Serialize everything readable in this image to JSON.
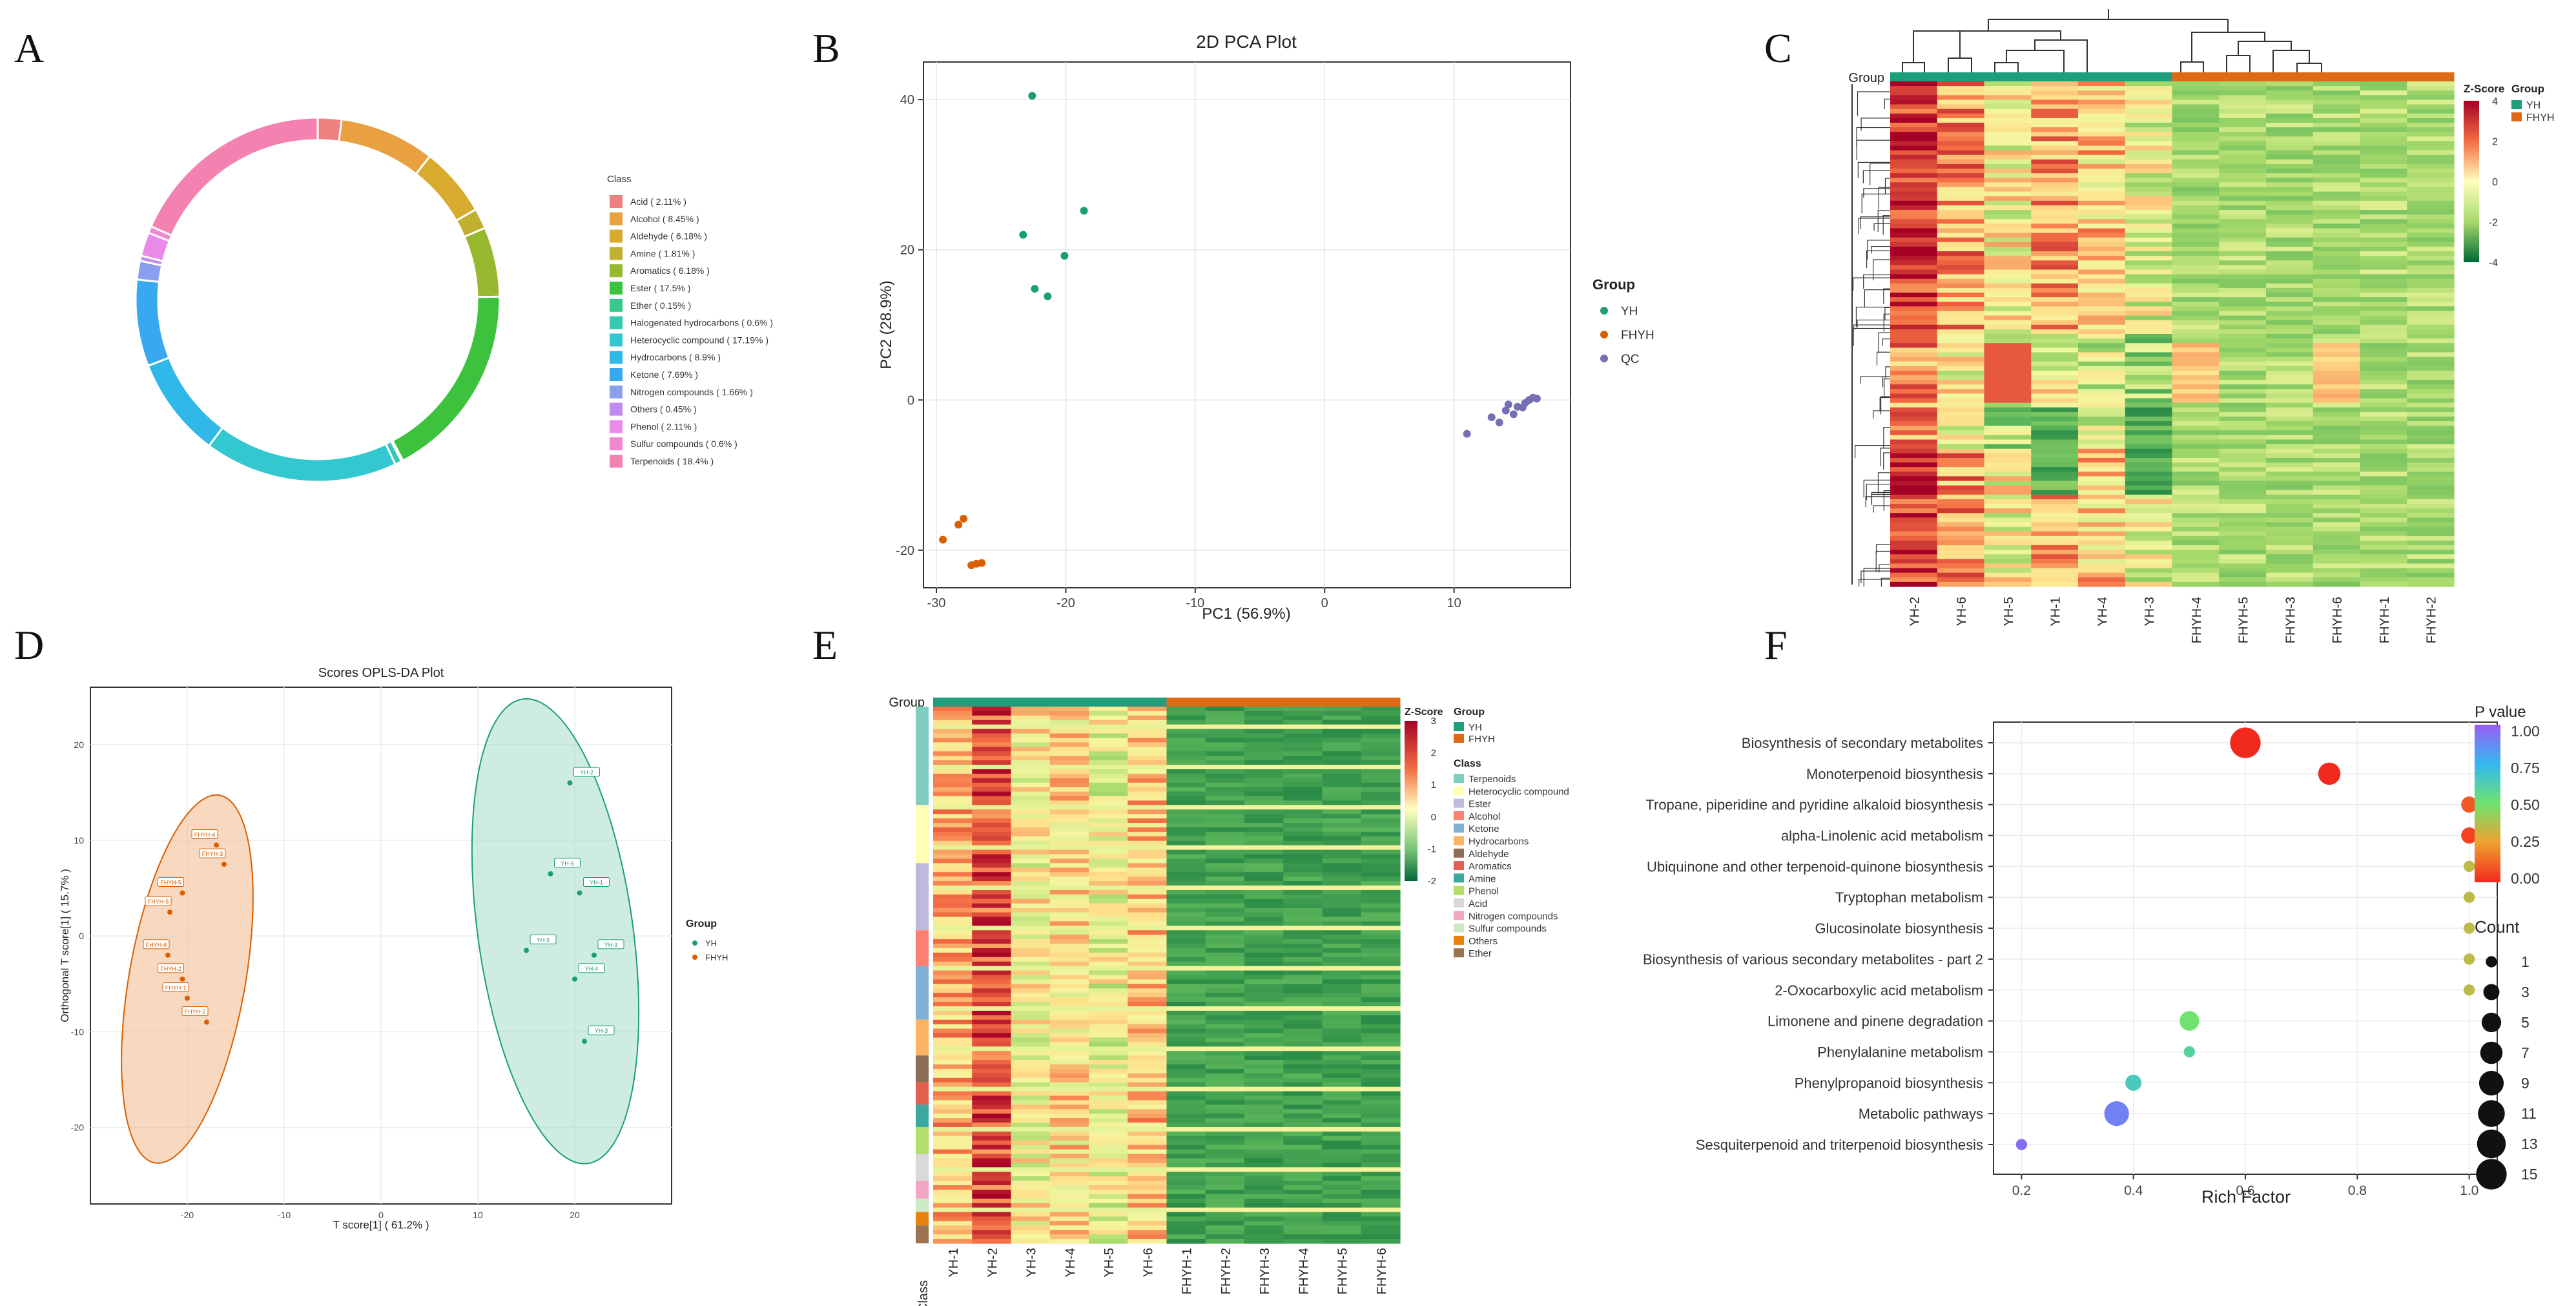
{
  "panels": {
    "A": "A",
    "B": "B",
    "C": "C",
    "D": "D",
    "E": "E",
    "F": "F"
  },
  "chart_data": [
    {
      "id": "A",
      "type": "pie",
      "title": "",
      "legend_title": "Class",
      "legend_position": "right",
      "labels": [
        "Acid ( 2.11% )",
        "Alcohol ( 8.45% )",
        "Aldehyde ( 6.18% )",
        "Amine ( 1.81% )",
        "Aromatics ( 6.18% )",
        "Ester ( 17.5% )",
        "Ether ( 0.15% )",
        "Halogenated hydrocarbons ( 0.6% )",
        "Heterocyclic compound ( 17.19% )",
        "Hydrocarbons ( 8.9% )",
        "Ketone ( 7.69% )",
        "Nitrogen compounds ( 1.66% )",
        "Others ( 0.45% )",
        "Phenol ( 2.11% )",
        "Sulfur compounds ( 0.6% )",
        "Terpenoids ( 18.4% )"
      ],
      "values": [
        2.11,
        8.45,
        6.18,
        1.81,
        6.18,
        17.5,
        0.15,
        0.6,
        17.19,
        8.9,
        7.69,
        1.66,
        0.45,
        2.11,
        0.6,
        18.4
      ],
      "colors": [
        "#F08080",
        "#E8A040",
        "#D8AA30",
        "#C0B030",
        "#98B830",
        "#3CC23C",
        "#38C98A",
        "#36C9B0",
        "#33C7D0",
        "#30B8E8",
        "#38A8F0",
        "#8AA0EE",
        "#C08AEE",
        "#E88AE8",
        "#F088D0",
        "#F482B0"
      ]
    },
    {
      "id": "B",
      "type": "scatter",
      "title": "2D PCA Plot",
      "xlabel": "PC1 (56.9%)",
      "ylabel": "PC2 (28.9%)",
      "xlim": [
        -31,
        19
      ],
      "ylim": [
        -25,
        45
      ],
      "xticks": [
        "-30",
        "-20",
        "-10",
        "0",
        "10"
      ],
      "yticks": [
        "-20",
        "0",
        "20",
        "40"
      ],
      "xtick_values": [
        -30,
        -20,
        -10,
        0,
        10
      ],
      "ytick_values": [
        -20,
        0,
        20,
        40
      ],
      "grid": true,
      "legend_title": "Group",
      "legend_position": "right",
      "series": [
        {
          "name": "YH",
          "color": "#1B9E77",
          "points": [
            [
              -22.6,
              40.5
            ],
            [
              -23.3,
              22
            ],
            [
              -20.1,
              19.2
            ],
            [
              -18.6,
              25.2
            ],
            [
              -22.4,
              14.8
            ],
            [
              -21.4,
              13.8
            ]
          ]
        },
        {
          "name": "FHYH",
          "color": "#D95F02",
          "points": [
            [
              -29.5,
              -18.6
            ],
            [
              -28.3,
              -16.6
            ],
            [
              -27.9,
              -15.8
            ],
            [
              -27.3,
              -22
            ],
            [
              -26.9,
              -21.8
            ],
            [
              -26.5,
              -21.7
            ]
          ]
        },
        {
          "name": "QC",
          "color": "#7570B3",
          "points": [
            [
              11,
              -4.5
            ],
            [
              12.9,
              -2.3
            ],
            [
              13.5,
              -3
            ],
            [
              14,
              -1.4
            ],
            [
              14.2,
              -0.6
            ],
            [
              14.6,
              -1.9
            ],
            [
              14.9,
              -0.9
            ],
            [
              15.3,
              -1
            ],
            [
              15.5,
              -0.4
            ],
            [
              15.8,
              0
            ],
            [
              16.1,
              0.3
            ],
            [
              16.4,
              0.2
            ]
          ]
        }
      ]
    },
    {
      "id": "C",
      "type": "heatmap",
      "columns": [
        "YH-2",
        "YH-6",
        "YH-5",
        "YH-1",
        "YH-4",
        "YH-3",
        "FHYH-4",
        "FHYH-5",
        "FHYH-3",
        "FHYH-6",
        "FHYH-1",
        "FHYH-2"
      ],
      "column_groups": [
        "YH",
        "YH",
        "YH",
        "YH",
        "YH",
        "YH",
        "FHYH",
        "FHYH",
        "FHYH",
        "FHYH",
        "FHYH",
        "FHYH"
      ],
      "annotation_label": "Group",
      "scale_title": "Z-Score",
      "scale_ticks": [
        "4",
        "2",
        "0",
        "-2",
        "-4"
      ],
      "scale_range": [
        -4,
        4
      ],
      "legend_title": "Group",
      "legend_items": [
        "YH",
        "FHYH"
      ],
      "group_colors": {
        "YH": "#1E9E7A",
        "FHYH": "#DE6A16"
      }
    },
    {
      "id": "D",
      "type": "scatter",
      "title": "Scores OPLS-DA Plot",
      "xlabel": "T score[1] ( 61.2% )",
      "ylabel": "Orthogonal T score[1] ( 15.7% )",
      "xlim": [
        -30,
        30
      ],
      "ylim": [
        -28,
        26
      ],
      "xticks": [
        "-20",
        "-10",
        "0",
        "10",
        "20"
      ],
      "yticks": [
        "-20",
        "-10",
        "0",
        "10",
        "20"
      ],
      "xtick_values": [
        -20,
        -10,
        0,
        10,
        20
      ],
      "ytick_values": [
        -20,
        -10,
        0,
        10,
        20
      ],
      "grid": true,
      "legend_title": "Group",
      "legend_position": "right",
      "series": [
        {
          "name": "YH",
          "color": "#1B9E77",
          "points": [
            [
              19.5,
              16
            ],
            [
              17.5,
              6.5
            ],
            [
              20.5,
              4.5
            ],
            [
              15,
              -1.5
            ],
            [
              22,
              -2
            ],
            [
              20,
              -4.5
            ],
            [
              21,
              -11
            ]
          ],
          "labels": [
            "YH-2",
            "YH-6",
            "YH-1",
            "YH-5",
            "YH-3",
            "YH-4",
            "YH-3"
          ]
        },
        {
          "name": "FHYH",
          "color": "#D95F02",
          "points": [
            [
              -17,
              9.5
            ],
            [
              -16.2,
              7.5
            ],
            [
              -20.5,
              4.5
            ],
            [
              -21.8,
              2.5
            ],
            [
              -22,
              -2
            ],
            [
              -20.5,
              -4.5
            ],
            [
              -20,
              -6.5
            ],
            [
              -18,
              -9
            ]
          ],
          "labels": [
            "FHYH-4",
            "FHYH-3",
            "FHYH-5",
            "FHYH-5",
            "FHYH-6",
            "FHYH-2",
            "FHYH-1",
            "FHYH-2"
          ]
        }
      ]
    },
    {
      "id": "E",
      "type": "heatmap",
      "columns": [
        "YH-1",
        "YH-2",
        "YH-3",
        "YH-4",
        "YH-5",
        "YH-6",
        "FHYH-1",
        "FHYH-2",
        "FHYH-3",
        "FHYH-4",
        "FHYH-5",
        "FHYH-6"
      ],
      "column_groups": [
        "YH",
        "YH",
        "YH",
        "YH",
        "YH",
        "YH",
        "FHYH",
        "FHYH",
        "FHYH",
        "FHYH",
        "FHYH",
        "FHYH"
      ],
      "annotation_label": "Group",
      "row_annotation_label": "Class",
      "scale_title": "Z-Score",
      "scale_ticks": [
        "3",
        "2",
        "1",
        "0",
        "-1",
        "-2"
      ],
      "scale_range": [
        -2,
        3
      ],
      "group_legend_title": "Group",
      "group_items": [
        "YH",
        "FHYH"
      ],
      "class_legend_title": "Class",
      "class_items": [
        "Terpenoids",
        "Heterocyclic compound",
        "Ester",
        "Alcohol",
        "Ketone",
        "Hydrocarbons",
        "Aldehyde",
        "Aromatics",
        "Amine",
        "Phenol",
        "Acid",
        "Nitrogen compounds",
        "Sulfur compounds",
        "Others",
        "Ether"
      ],
      "class_colors": [
        "#80CDC1",
        "#FFFFB3",
        "#BEBADA",
        "#FB8072",
        "#80B1D3",
        "#FDB462",
        "#8C6D57",
        "#E35F52",
        "#3BA9A0",
        "#B3DE69",
        "#D9D9D9",
        "#F2A6C4",
        "#CCEBC5",
        "#E8820C",
        "#9A7452"
      ]
    },
    {
      "id": "F",
      "type": "scatter",
      "xlabel": "Rich Factor",
      "ylabel": "",
      "xlim": [
        0.15,
        1.05
      ],
      "xticks": [
        "0.2",
        "0.4",
        "0.6",
        "0.8",
        "1.0"
      ],
      "xtick_values": [
        0.2,
        0.4,
        0.6,
        0.8,
        1.0
      ],
      "grid": true,
      "categories": [
        "Biosynthesis of secondary metabolites",
        "Monoterpenoid biosynthesis",
        "Tropane, piperidine and pyridine alkaloid biosynthesis",
        "alpha-Linolenic acid metabolism",
        "Ubiquinone and other terpenoid-quinone biosynthesis",
        "Tryptophan metabolism",
        "Glucosinolate biosynthesis",
        "Biosynthesis of various secondary metabolites - part 2",
        "2-Oxocarboxylic acid metabolism",
        "Limonene and pinene degradation",
        "Phenylalanine metabolism",
        "Phenylpropanoid biosynthesis",
        "Metabolic pathways",
        "Sesquiterpenoid and triterpenoid biosynthesis"
      ],
      "rich_factor": [
        0.6,
        0.75,
        1.0,
        1.0,
        1.0,
        1.0,
        1.0,
        1.0,
        1.0,
        0.5,
        0.5,
        0.4,
        0.37,
        0.2
      ],
      "count": [
        15,
        7,
        3,
        3,
        1,
        1,
        1,
        1,
        1,
        5,
        1,
        3,
        9,
        1
      ],
      "pvalue": [
        0.0,
        0.0,
        0.1,
        0.05,
        0.35,
        0.35,
        0.35,
        0.35,
        0.35,
        0.5,
        0.6,
        0.65,
        0.9,
        0.95
      ],
      "pvalue_legend_title": "P value",
      "pvalue_ticks": [
        "1.00",
        "0.75",
        "0.50",
        "0.25",
        "0.00"
      ],
      "count_legend_title": "Count",
      "count_ticks": [
        "1",
        "3",
        "5",
        "7",
        "9",
        "11",
        "13",
        "15"
      ]
    }
  ]
}
